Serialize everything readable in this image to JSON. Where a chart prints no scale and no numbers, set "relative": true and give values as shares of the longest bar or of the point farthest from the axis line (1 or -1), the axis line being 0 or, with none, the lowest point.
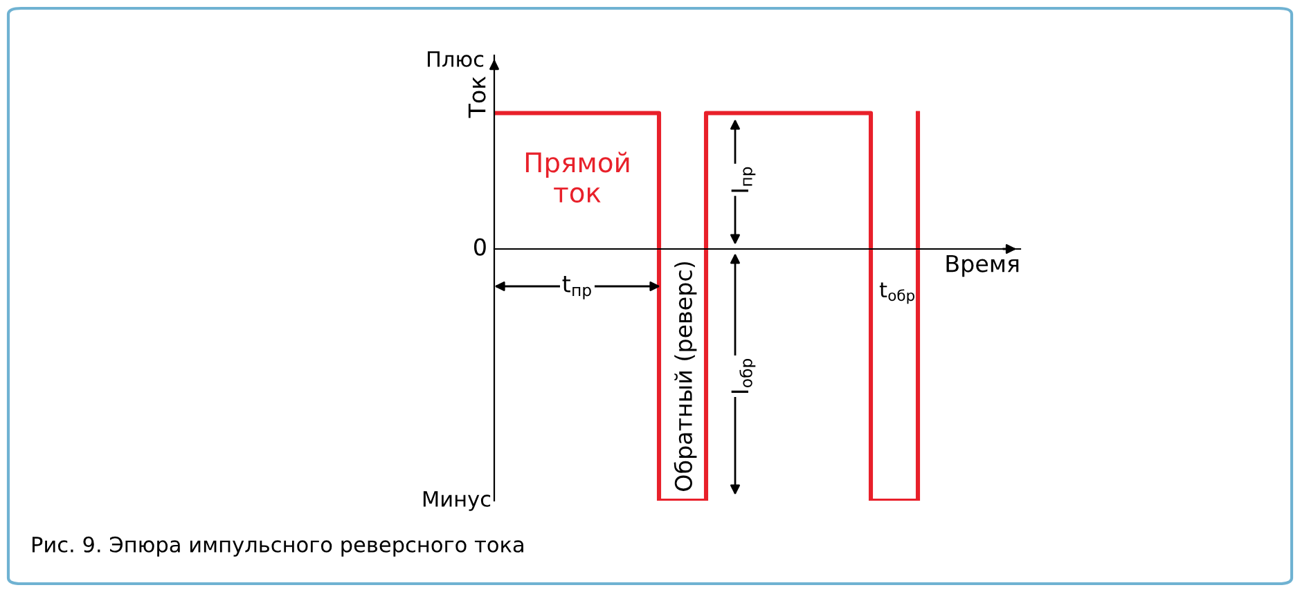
{
  "chart_data": {
    "type": "step",
    "xlabel": "Время",
    "ylabel": "Ток",
    "relative": true,
    "categories": [
      null,
      null,
      null,
      null,
      null,
      null,
      null,
      null,
      null,
      null,
      null,
      null,
      null,
      null,
      null,
      null,
      null,
      null,
      null
    ],
    "series": [
      {
        "color": "#e8202a",
        "values": [
          0.54,
          0.54,
          0.54,
          0.54,
          0.54,
          0.54,
          0.54,
          -1,
          -1,
          0.54,
          0.54,
          0.54,
          0.54,
          0.54,
          0.54,
          0.54,
          -1,
          -1,
          0.54
        ]
      }
    ],
    "annotations": [
      "Прямой\nток",
      "t$_{пр}$",
      "Обратный (реверс)",
      "I$_{пр}$",
      "I$_{обр}$",
      "t$_{обр}$",
      "Плюс",
      "Минус",
      "0",
      "Рис. 9. Эпюра импульсного реверсного тока"
    ]
  }
}
